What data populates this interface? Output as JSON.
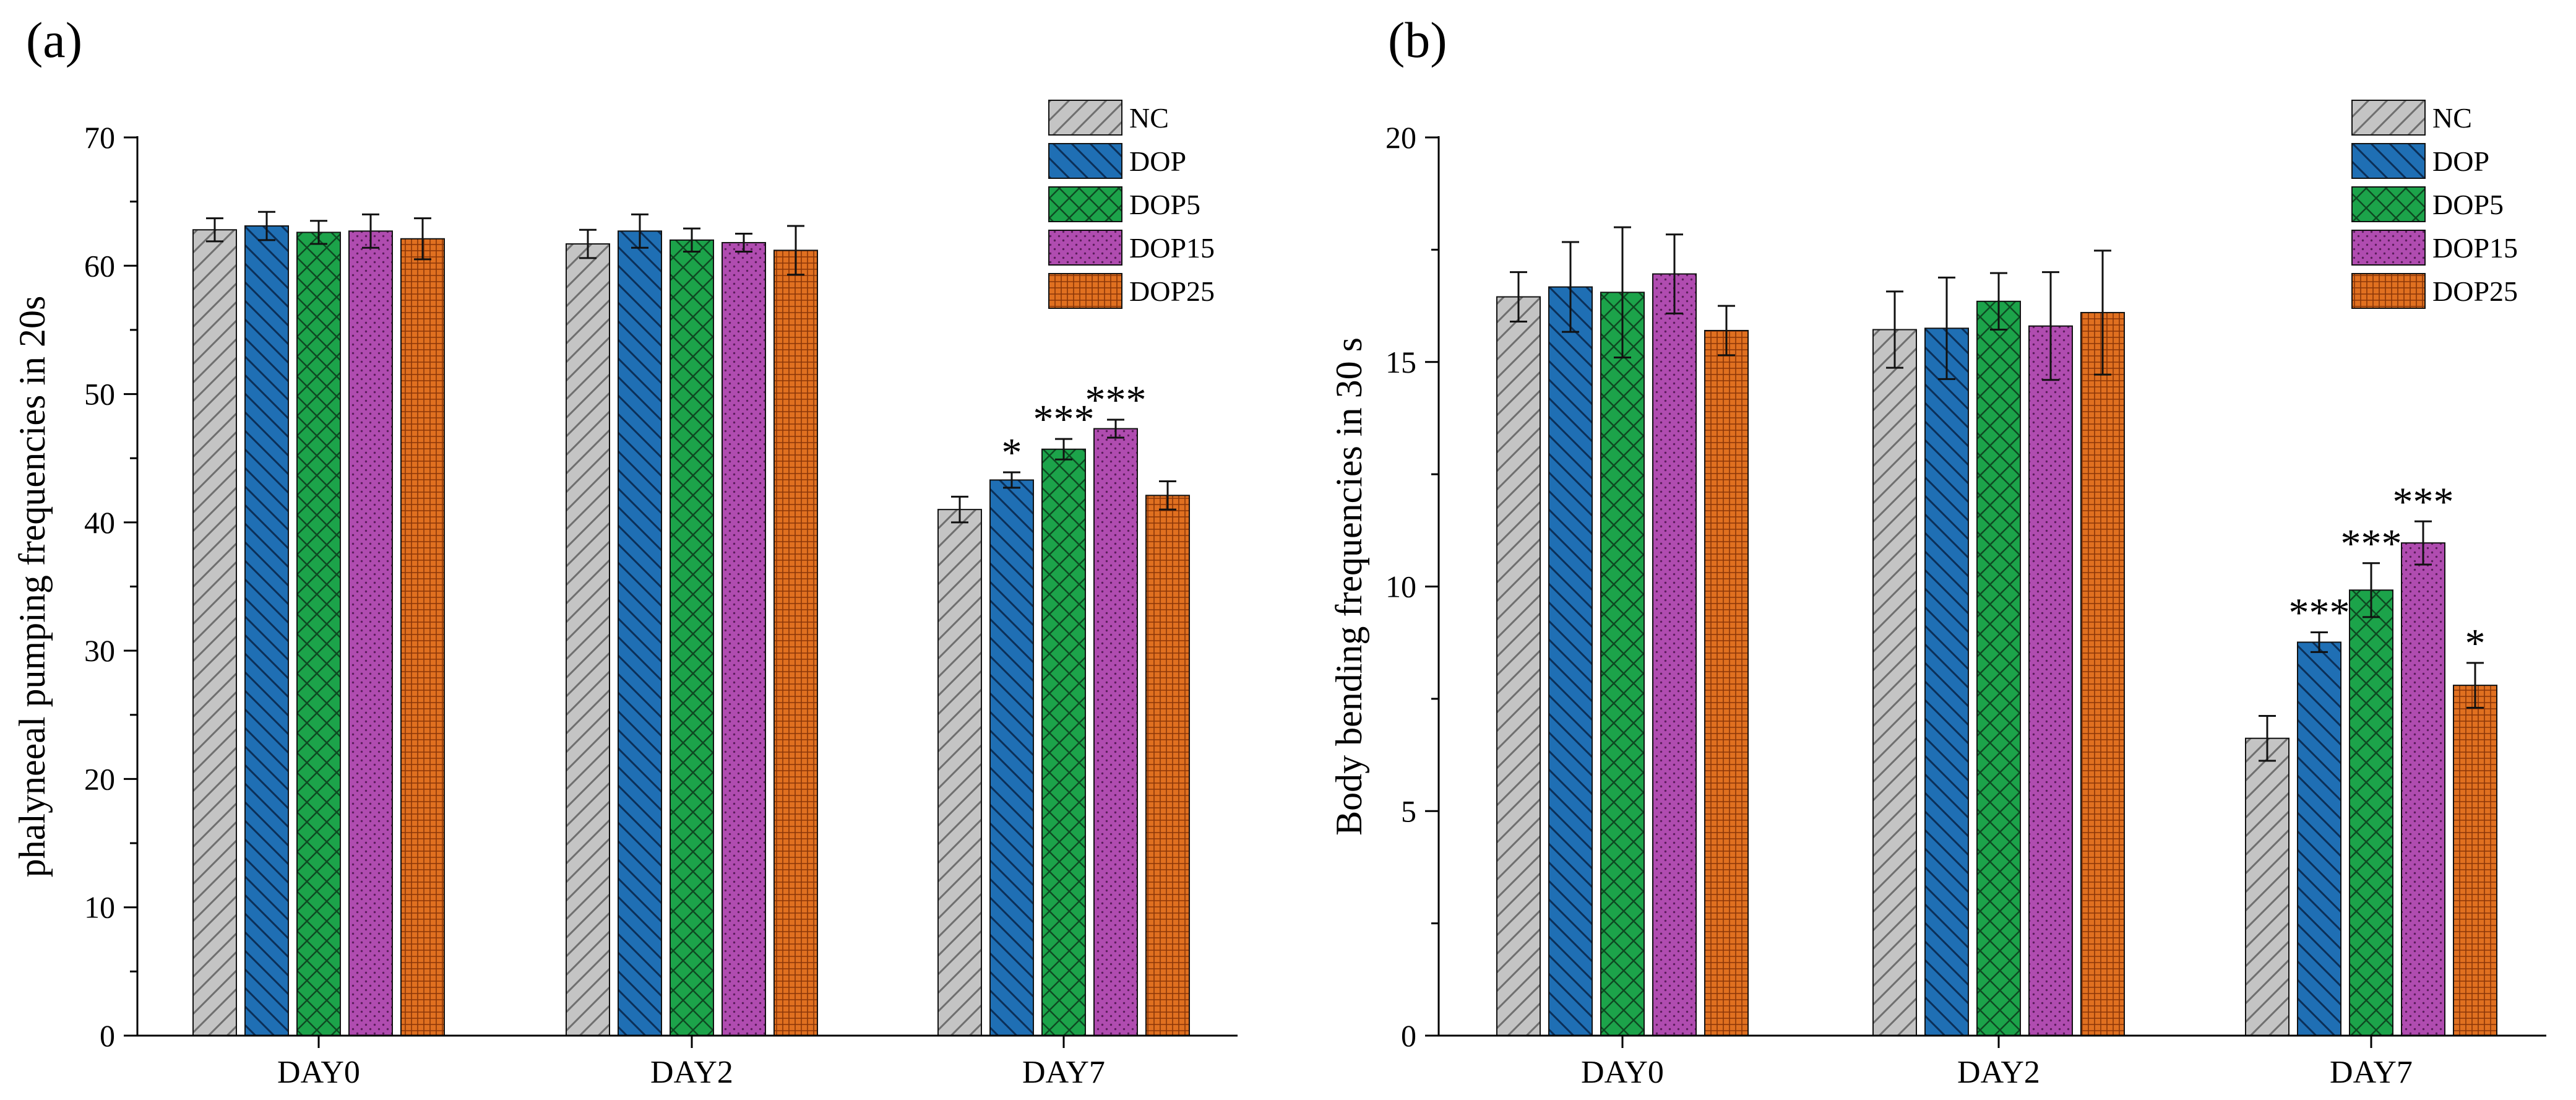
{
  "colors": {
    "NC": "#c0c0c0",
    "DOP": "#1f6fb4",
    "DOP5": "#1ca34a",
    "DOP15": "#b04cb0",
    "DOP25": "#d4661c"
  },
  "chart_data": [
    {
      "type": "bar",
      "panel_label": "(a)",
      "ylabel": "phalyneeal pumping frequencies in 20s",
      "xlabel": "",
      "ylim": [
        0,
        70
      ],
      "yticks": [
        0,
        10,
        20,
        30,
        40,
        50,
        60,
        70
      ],
      "categories": [
        "DAY0",
        "DAY2",
        "DAY7"
      ],
      "legend_position": "top-right",
      "series": [
        {
          "name": "NC",
          "values": [
            62.8,
            61.7,
            41.0
          ],
          "errors": [
            0.9,
            1.1,
            1.0
          ],
          "sig": [
            "",
            "",
            ""
          ]
        },
        {
          "name": "DOP",
          "values": [
            63.1,
            62.7,
            43.3
          ],
          "errors": [
            1.1,
            1.3,
            0.6
          ],
          "sig": [
            "",
            "",
            "*"
          ]
        },
        {
          "name": "DOP5",
          "values": [
            62.6,
            62.0,
            45.7
          ],
          "errors": [
            0.9,
            0.9,
            0.8
          ],
          "sig": [
            "",
            "",
            "***"
          ]
        },
        {
          "name": "DOP15",
          "values": [
            62.7,
            61.8,
            47.3
          ],
          "errors": [
            1.3,
            0.7,
            0.7
          ],
          "sig": [
            "",
            "",
            "***"
          ]
        },
        {
          "name": "DOP25",
          "values": [
            62.1,
            61.2,
            42.1
          ],
          "errors": [
            1.6,
            1.9,
            1.1
          ],
          "sig": [
            "",
            "",
            ""
          ]
        }
      ]
    },
    {
      "type": "bar",
      "panel_label": "(b)",
      "ylabel": "Body bending frequencies in 30 s",
      "xlabel": "",
      "ylim": [
        0,
        20
      ],
      "yticks": [
        0,
        5,
        10,
        15,
        20
      ],
      "categories": [
        "DAY0",
        "DAY2",
        "DAY7"
      ],
      "legend_position": "top-right",
      "series": [
        {
          "name": "NC",
          "values": [
            16.45,
            15.72,
            6.62
          ],
          "errors": [
            0.55,
            0.85,
            0.5
          ],
          "sig": [
            "",
            "",
            ""
          ]
        },
        {
          "name": "DOP",
          "values": [
            16.67,
            15.75,
            8.76
          ],
          "errors": [
            1.0,
            1.13,
            0.22
          ],
          "sig": [
            "",
            "",
            "***"
          ]
        },
        {
          "name": "DOP5",
          "values": [
            16.55,
            16.35,
            9.92
          ],
          "errors": [
            1.45,
            0.63,
            0.6
          ],
          "sig": [
            "",
            "",
            "***"
          ]
        },
        {
          "name": "DOP15",
          "values": [
            16.96,
            15.8,
            10.97
          ],
          "errors": [
            0.88,
            1.2,
            0.48
          ],
          "sig": [
            "",
            "",
            "***"
          ]
        },
        {
          "name": "DOP25",
          "values": [
            15.7,
            16.1,
            7.8
          ],
          "errors": [
            0.55,
            1.38,
            0.5
          ],
          "sig": [
            "",
            "",
            "*"
          ]
        }
      ]
    }
  ]
}
